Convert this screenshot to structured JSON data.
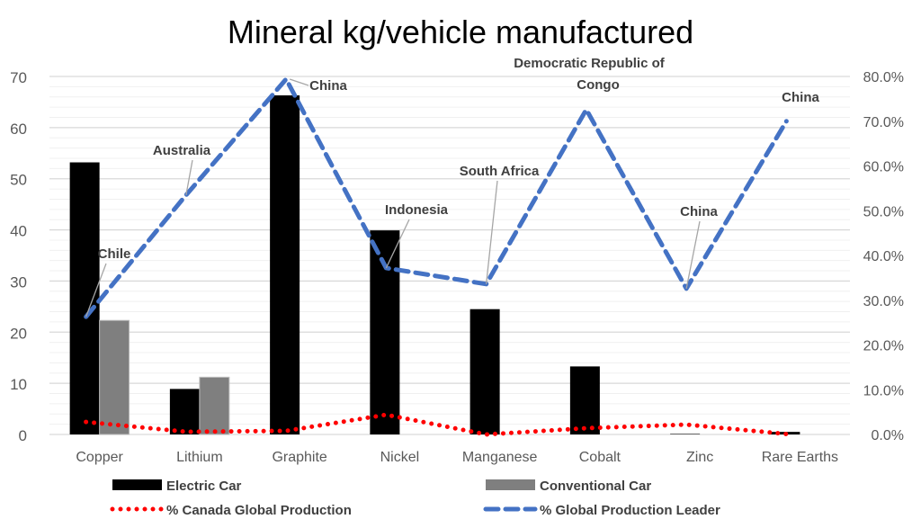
{
  "chart_data": {
    "type": "bar",
    "title": "Mineral kg/vehicle manufactured",
    "categories": [
      "Copper",
      "Lithium",
      "Graphite",
      "Nickel",
      "Manganese",
      "Cobalt",
      "Zinc",
      "Rare Earths"
    ],
    "series": [
      {
        "name": "Electric Car",
        "type": "bar",
        "axis": "left",
        "color": "#000000",
        "values": [
          53.2,
          8.9,
          66.3,
          39.9,
          24.5,
          13.3,
          0.1,
          0.5
        ]
      },
      {
        "name": "Conventional Car",
        "type": "bar",
        "axis": "left",
        "color": "#7f7f7f",
        "values": [
          22.3,
          11.2,
          null,
          null,
          null,
          null,
          null,
          null
        ]
      },
      {
        "name": "% Canada Global Production",
        "type": "line",
        "style": "dotted",
        "axis": "right",
        "color": "#ff0000",
        "values": [
          2.8,
          0.6,
          0.8,
          4.4,
          0.0,
          1.4,
          2.2,
          0.1
        ]
      },
      {
        "name": "% Global Production Leader",
        "type": "line",
        "style": "dashed",
        "axis": "right",
        "color": "#4472c4",
        "values": [
          26.3,
          53.5,
          79.4,
          37.2,
          33.6,
          72.6,
          32.6,
          70.0
        ]
      }
    ],
    "annotations": [
      "Chile",
      "Australia",
      "China",
      "Indonesia",
      "South Africa",
      "Democratic Republic of Congo",
      "China",
      "China"
    ],
    "ylim": [
      0,
      70
    ],
    "yticks": [
      "0",
      "10",
      "20",
      "30",
      "40",
      "50",
      "60",
      "70"
    ],
    "y2lim": [
      0,
      80
    ],
    "y2ticks": [
      "0.0%",
      "10.0%",
      "20.0%",
      "30.0%",
      "40.0%",
      "50.0%",
      "60.0%",
      "70.0%",
      "80.0%"
    ],
    "grid": true,
    "legend": "bottom"
  }
}
